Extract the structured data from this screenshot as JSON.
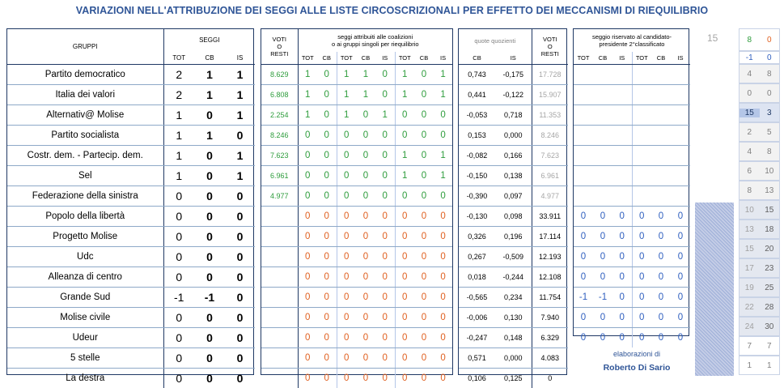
{
  "title": "VARIAZIONI NELL'ATTRIBUZIONE DEI SEGGI ALLE LISTE CIRCOSCRIZIONALI PER EFFETTO DEI MECCANISMI DI RIEQUILIBRIO",
  "headers": {
    "gruppi": "GRUPPI",
    "seggi": "SEGGI",
    "tot": "TOT",
    "cb": "CB",
    "is": "IS",
    "voti_resti": [
      "VOTI",
      "O",
      "RESTI"
    ],
    "coal_title": [
      "seggi attribuiti alle coalizioni",
      "o ai gruppi singoli per riequilibrio"
    ],
    "quote": "quote quozienti",
    "riservato": [
      "seggio riservato al candidato-",
      "presidente 2°classificato"
    ]
  },
  "side_number": "15",
  "rows": [
    {
      "name": "Partito democratico",
      "seggi": [
        "2",
        "1",
        "1"
      ],
      "voti": "8.629",
      "coal": [
        "1",
        "0",
        "1",
        "1",
        "0",
        "1",
        "0",
        "1"
      ],
      "cb": "0,743",
      "is": "-0,175",
      "resti": "17.728"
    },
    {
      "name": "Italia dei valori",
      "seggi": [
        "2",
        "1",
        "1"
      ],
      "voti": "6.808",
      "coal": [
        "1",
        "0",
        "1",
        "1",
        "0",
        "1",
        "0",
        "1"
      ],
      "cb": "0,441",
      "is": "-0,122",
      "resti": "15.907"
    },
    {
      "name": "Alternativ@ Molise",
      "seggi": [
        "1",
        "0",
        "1"
      ],
      "voti": "2.254",
      "coal": [
        "1",
        "0",
        "1",
        "0",
        "1",
        "0",
        "0",
        "0"
      ],
      "cb": "-0,053",
      "is": "0,718",
      "resti": "11.353"
    },
    {
      "name": "Partito socialista",
      "seggi": [
        "1",
        "1",
        "0"
      ],
      "voti": "8.246",
      "coal": [
        "0",
        "0",
        "0",
        "0",
        "0",
        "0",
        "0",
        "0"
      ],
      "cb": "0,153",
      "is": "0,000",
      "resti": "8.246"
    },
    {
      "name": "Costr. dem. - Partecip. dem.",
      "seggi": [
        "1",
        "0",
        "1"
      ],
      "voti": "7.623",
      "coal": [
        "0",
        "0",
        "0",
        "0",
        "0",
        "1",
        "0",
        "1"
      ],
      "cb": "-0,082",
      "is": "0,166",
      "resti": "7.623"
    },
    {
      "name": "Sel",
      "seggi": [
        "1",
        "0",
        "1"
      ],
      "voti": "6.961",
      "coal": [
        "0",
        "0",
        "0",
        "0",
        "0",
        "1",
        "0",
        "1"
      ],
      "cb": "-0,150",
      "is": "0,138",
      "resti": "6.961"
    },
    {
      "name": "Federazione della sinistra",
      "seggi": [
        "0",
        "0",
        "0"
      ],
      "voti": "4.977",
      "coal": [
        "0",
        "0",
        "0",
        "0",
        "0",
        "0",
        "0",
        "0"
      ],
      "cb": "-0,390",
      "is": "0,097",
      "resti": "4.977"
    },
    {
      "name": "Popolo della libertà",
      "seggi": [
        "0",
        "0",
        "0"
      ],
      "voti": "",
      "coal": [
        "0",
        "0",
        "0",
        "0",
        "0",
        "0",
        "0",
        "0"
      ],
      "cb": "-0,130",
      "is": "0,098",
      "resti": "33.911",
      "ris": [
        "0",
        "0",
        "0",
        "0",
        "0",
        "0"
      ]
    },
    {
      "name": "Progetto Molise",
      "seggi": [
        "0",
        "0",
        "0"
      ],
      "voti": "",
      "coal": [
        "0",
        "0",
        "0",
        "0",
        "0",
        "0",
        "0",
        "0"
      ],
      "cb": "0,326",
      "is": "0,196",
      "resti": "17.114",
      "ris": [
        "0",
        "0",
        "0",
        "0",
        "0",
        "0"
      ]
    },
    {
      "name": "Udc",
      "seggi": [
        "0",
        "0",
        "0"
      ],
      "voti": "",
      "coal": [
        "0",
        "0",
        "0",
        "0",
        "0",
        "0",
        "0",
        "0"
      ],
      "cb": "0,267",
      "is": "-0,509",
      "resti": "12.193",
      "ris": [
        "0",
        "0",
        "0",
        "0",
        "0",
        "0"
      ]
    },
    {
      "name": "Alleanza di centro",
      "seggi": [
        "0",
        "0",
        "0"
      ],
      "voti": "",
      "coal": [
        "0",
        "0",
        "0",
        "0",
        "0",
        "0",
        "0",
        "0"
      ],
      "cb": "0,018",
      "is": "-0,244",
      "resti": "12.108",
      "ris": [
        "0",
        "0",
        "0",
        "0",
        "0",
        "0"
      ]
    },
    {
      "name": "Grande Sud",
      "seggi": [
        "-1",
        "-1",
        "0"
      ],
      "voti": "",
      "coal": [
        "0",
        "0",
        "0",
        "0",
        "0",
        "0",
        "0",
        "0"
      ],
      "cb": "-0,565",
      "is": "0,234",
      "resti": "11.754",
      "ris": [
        "-1",
        "-1",
        "0",
        "0",
        "0",
        "0"
      ]
    },
    {
      "name": "Molise civile",
      "seggi": [
        "0",
        "0",
        "0"
      ],
      "voti": "",
      "coal": [
        "0",
        "0",
        "0",
        "0",
        "0",
        "0",
        "0",
        "0"
      ],
      "cb": "-0,006",
      "is": "0,130",
      "resti": "7.940",
      "ris": [
        "0",
        "0",
        "0",
        "0",
        "0",
        "0"
      ]
    },
    {
      "name": "Udeur",
      "seggi": [
        "0",
        "0",
        "0"
      ],
      "voti": "",
      "coal": [
        "0",
        "0",
        "0",
        "0",
        "0",
        "0",
        "0",
        "0"
      ],
      "cb": "-0,247",
      "is": "0,148",
      "resti": "6.329",
      "ris": [
        "0",
        "0",
        "0",
        "0",
        "0",
        "0"
      ]
    },
    {
      "name": "5 stelle",
      "seggi": [
        "0",
        "0",
        "0"
      ],
      "voti": "",
      "coal": [
        "0",
        "0",
        "0",
        "0",
        "0",
        "0",
        "0",
        "0"
      ],
      "cb": "0,571",
      "is": "0,000",
      "resti": "4.083"
    },
    {
      "name": "La destra",
      "seggi": [
        "0",
        "0",
        "0"
      ],
      "voti": "",
      "coal": [
        "0",
        "0",
        "0",
        "0",
        "0",
        "0",
        "0",
        "0"
      ],
      "cb": "0,106",
      "is": "0,125",
      "resti": "0"
    }
  ],
  "right_col": [
    [
      "8",
      "0"
    ],
    [
      "-1",
      "0"
    ],
    [
      "4",
      "8"
    ],
    [
      "0",
      "0"
    ],
    [
      "15",
      "3"
    ],
    [
      "2",
      "5"
    ],
    [
      "4",
      "8"
    ],
    [
      "6",
      "10"
    ],
    [
      "8",
      "13"
    ],
    [
      "10",
      "15"
    ],
    [
      "13",
      "18"
    ],
    [
      "15",
      "20"
    ],
    [
      "17",
      "23"
    ],
    [
      "19",
      "25"
    ],
    [
      "22",
      "28"
    ],
    [
      "24",
      "30"
    ],
    [
      "7",
      "7"
    ],
    [
      "1",
      "1"
    ]
  ],
  "credit_line1": "elaborazioni di",
  "credit_line2": "Roberto Di Sario"
}
